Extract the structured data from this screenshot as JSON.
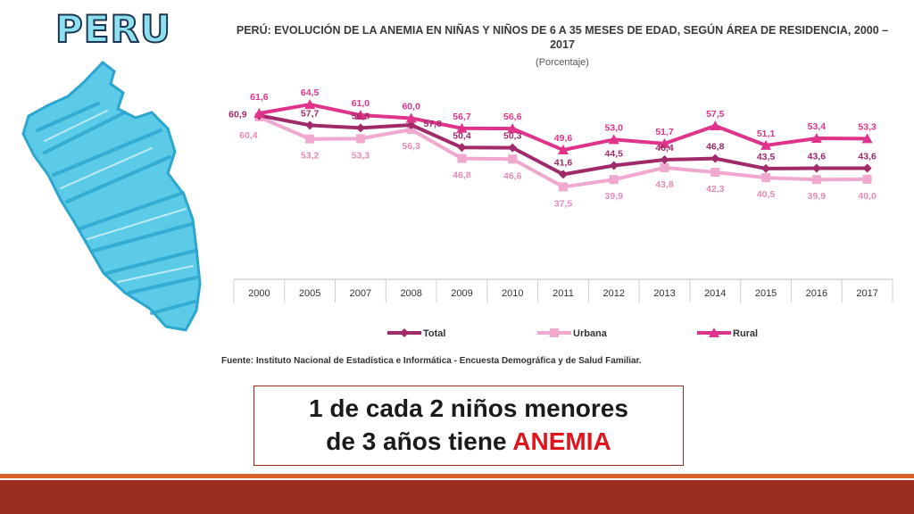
{
  "slide": {
    "logo_text": "PERU",
    "source": "Fuente: Instituto Nacional de Estadística e Informática - Encuesta Demográfica y de Salud Familiar.",
    "callout_line1": "1 de cada 2 niños menores",
    "callout_line2_prefix": "de 3 años tiene ",
    "callout_highlight": "ANEMIA"
  },
  "colors": {
    "total": "#a12a6a",
    "urbana": "#f0a8cf",
    "rural": "#e0348c",
    "callout_highlight": "#e0141b",
    "footer_dark": "#9b2d20",
    "footer_light": "#d9622b",
    "map_fill": "#4ec3e4"
  },
  "chart_data": {
    "type": "line",
    "title": "PERÚ: EVOLUCIÓN DE LA ANEMIA EN NIÑAS Y NIÑOS DE 6 A 35 MESES DE EDAD, SEGÚN ÁREA DE RESIDENCIA, 2000 – 2017",
    "subtitle": "(Porcentaje)",
    "categories": [
      "2000",
      "2005",
      "2007",
      "2008",
      "2009",
      "2010",
      "2011",
      "2012",
      "2013",
      "2014",
      "2015",
      "2016",
      "2017"
    ],
    "series": [
      {
        "name": "Total",
        "marker": "diamond",
        "values": [
          60.9,
          57.7,
          56.8,
          57.8,
          50.4,
          50.3,
          41.6,
          44.5,
          46.4,
          46.8,
          43.5,
          43.6,
          43.6
        ],
        "labels": [
          "60,9",
          "57,7",
          "56,8",
          "57,8",
          "50,4",
          "50,3",
          "41,6",
          "44,5",
          "46,4",
          "46,8",
          "43,5",
          "43,6",
          "43,6"
        ]
      },
      {
        "name": "Urbana",
        "marker": "square",
        "values": [
          60.4,
          53.2,
          53.3,
          56.3,
          46.8,
          46.6,
          37.5,
          39.9,
          43.8,
          42.3,
          40.5,
          39.9,
          40.0
        ],
        "labels": [
          "60,4",
          "53,2",
          "53,3",
          "56,3",
          "46,8",
          "46,6",
          "37,5",
          "39,9",
          "43,8",
          "42,3",
          "40,5",
          "39,9",
          "40,0"
        ]
      },
      {
        "name": "Rural",
        "marker": "triangle",
        "values": [
          61.6,
          64.5,
          61.0,
          60.0,
          56.7,
          56.6,
          49.6,
          53.0,
          51.7,
          57.5,
          51.1,
          53.4,
          53.3
        ],
        "labels": [
          "61,6",
          "64,5",
          "61,0",
          "60,0",
          "56,7",
          "56,6",
          "49,6",
          "53,0",
          "51,7",
          "57,5",
          "51,1",
          "53,4",
          "53,3"
        ]
      }
    ],
    "legend_position": "bottom",
    "grid": false
  }
}
